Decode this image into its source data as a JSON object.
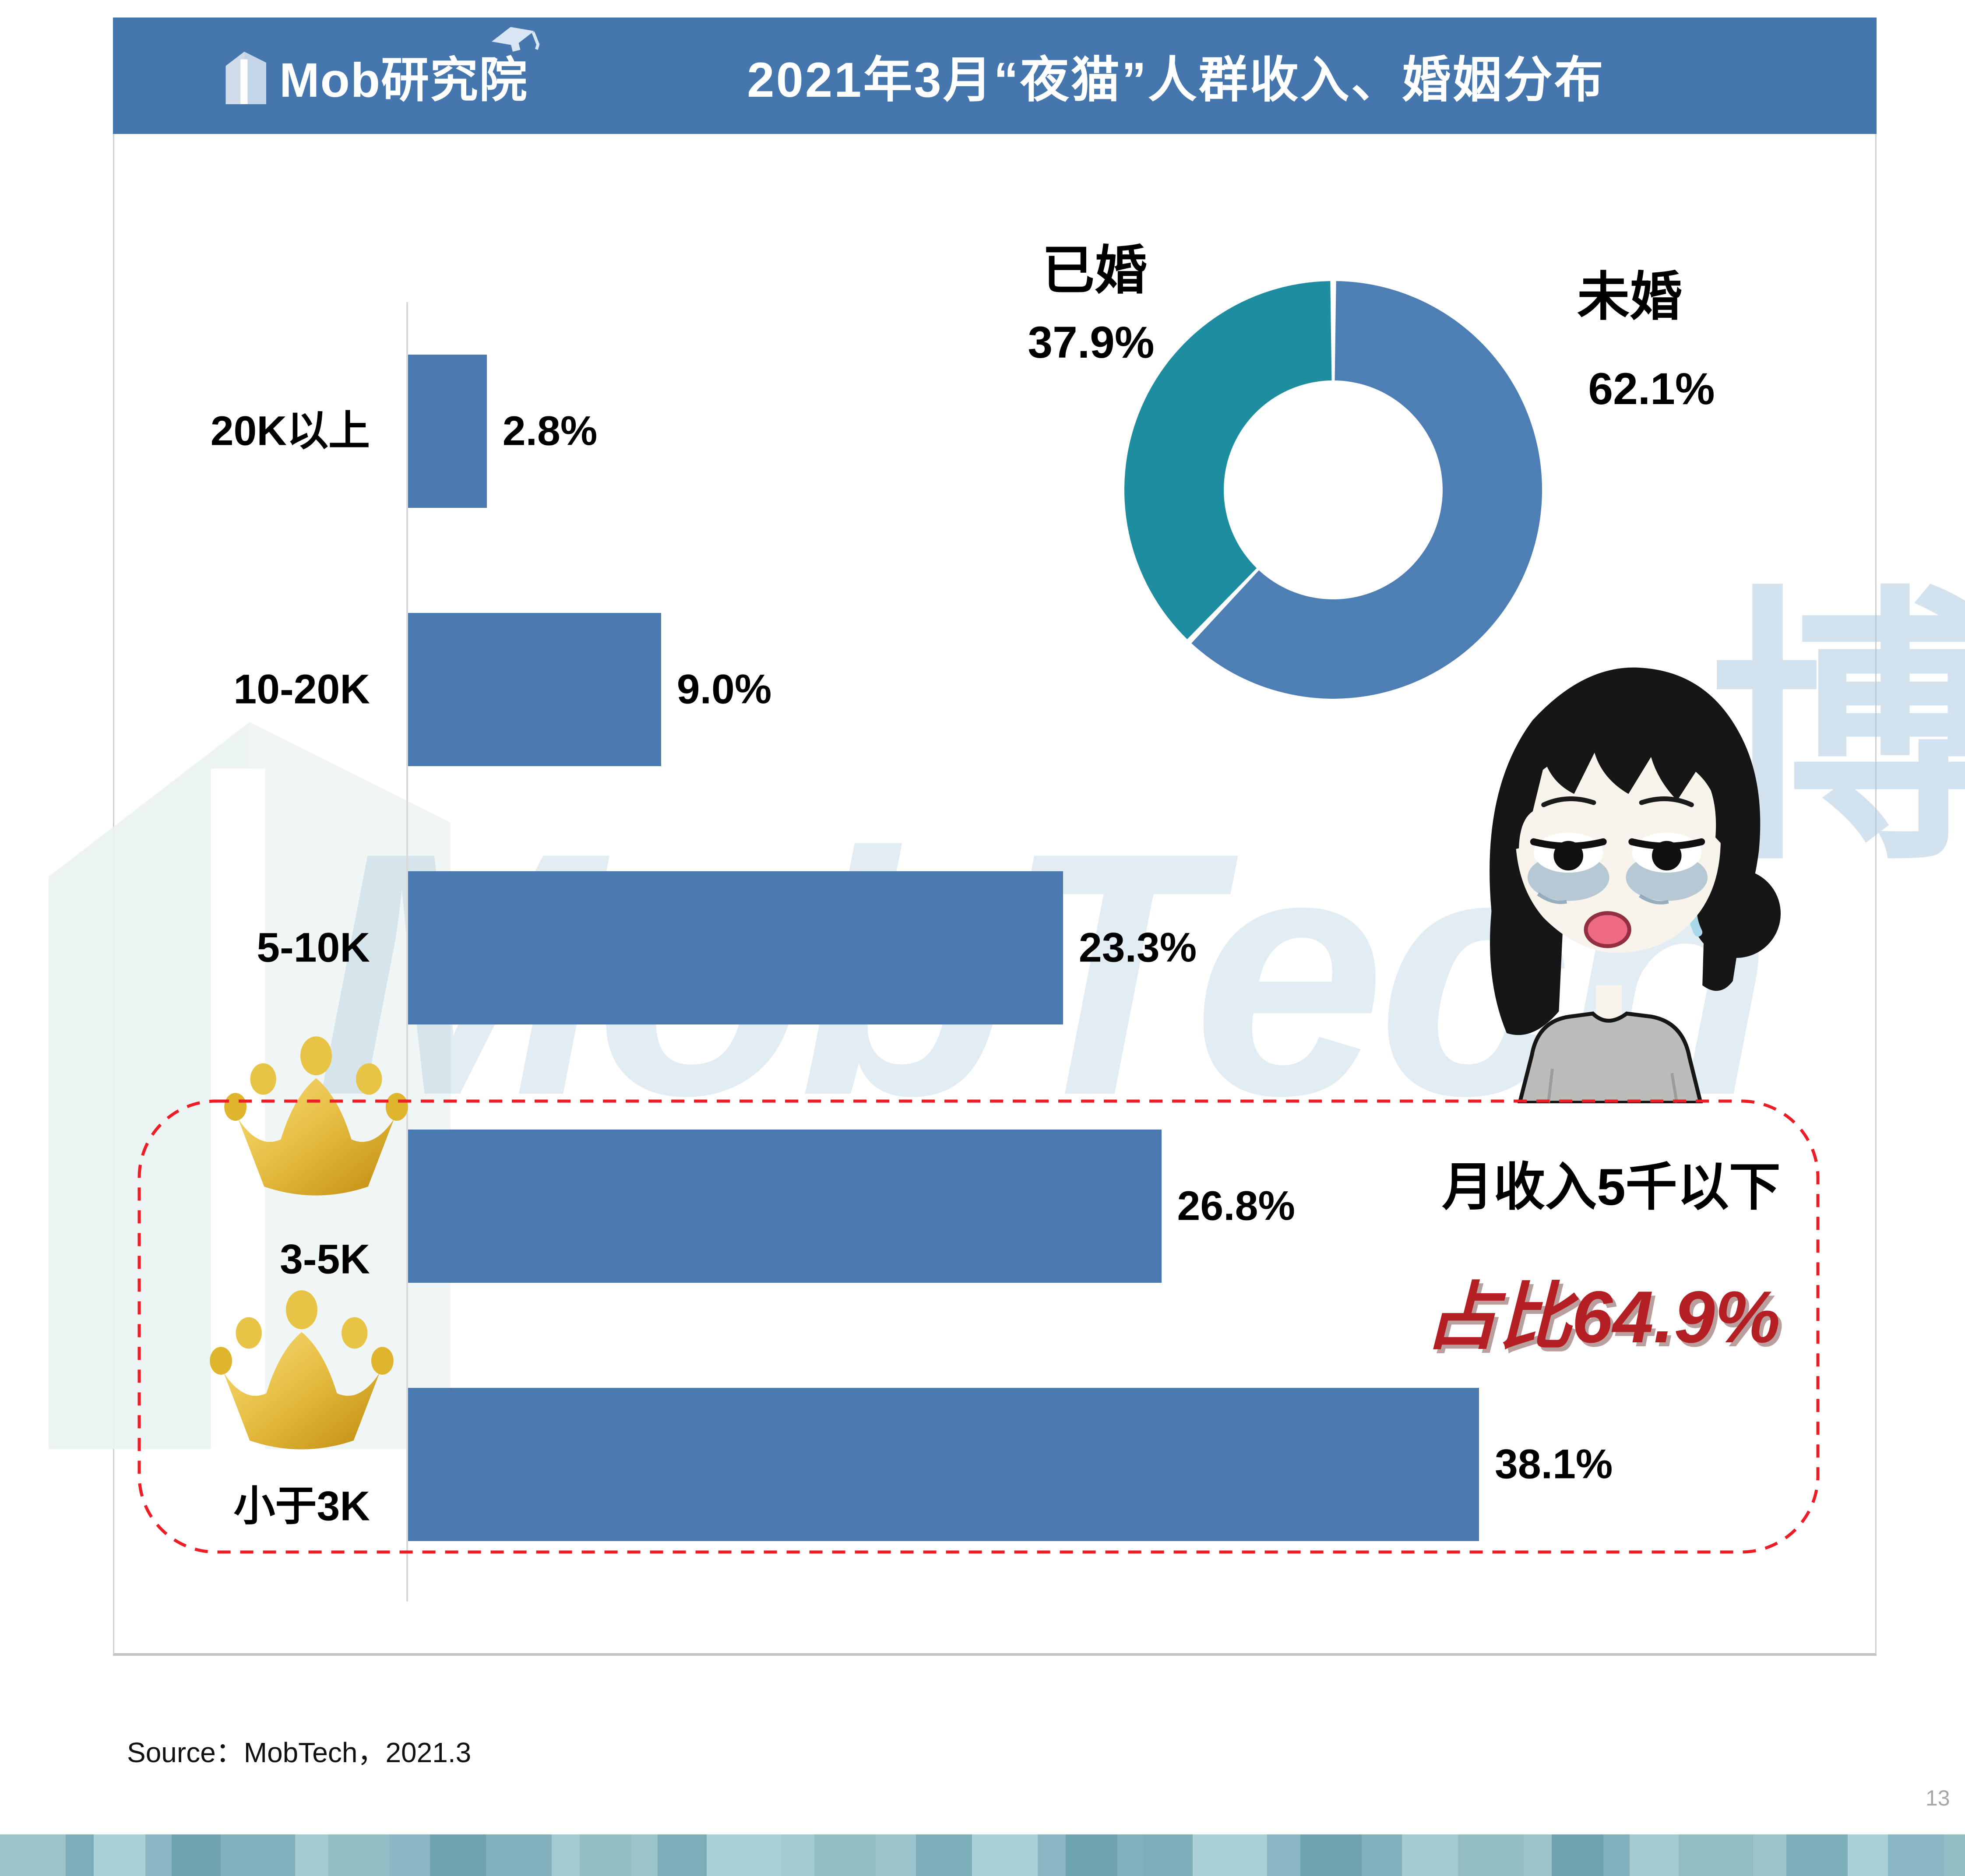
{
  "header": {
    "logo_text": "Mob研究院",
    "title": "2021年3月“夜猫”人群收入、婚姻分布",
    "bg_color": "#4576ad"
  },
  "chart_data": [
    {
      "type": "bar",
      "orientation": "horizontal",
      "title": "收入分布",
      "categories": [
        "20K以上",
        "10-20K",
        "5-10K",
        "3-5K",
        "小于3K"
      ],
      "values": [
        2.8,
        9.0,
        23.3,
        26.8,
        38.1
      ],
      "value_labels": [
        "2.8%",
        "9.0%",
        "23.3%",
        "26.8%",
        "38.1%"
      ],
      "crowned": [
        false,
        false,
        false,
        true,
        true
      ],
      "bar_color": "#4a79b2",
      "xlim": [
        0,
        40
      ],
      "grid": false
    },
    {
      "type": "pie",
      "donut": true,
      "title": "婚姻分布",
      "series": [
        {
          "name": "未婚",
          "value": 62.1,
          "label": "62.1%",
          "color": "#4d7fb5"
        },
        {
          "name": "已婚",
          "value": 37.9,
          "label": "37.9%",
          "color": "#1e8da0"
        }
      ],
      "legend_position": "sides"
    }
  ],
  "annotation": {
    "line1": "月收入5千以下",
    "line2": "占比64.9%",
    "accent_color": "#b41f24",
    "box_color": "#ee1c25"
  },
  "watermark": {
    "brand_text": "MobTech",
    "cjk_char": "博"
  },
  "source_note": "Source：MobTech，2021.3",
  "page_number": "13",
  "colors": {
    "header_bg": "#4576ad",
    "bar_blue": "#4a79b2",
    "donut_blue": "#4d7fb5",
    "donut_teal": "#1e8da0",
    "crown_gold": "#e0ad2a",
    "axis_gray": "#d9d9d9"
  },
  "bottom_strip_palette": [
    "#9ac3ca",
    "#89b6c0",
    "#a4cad0",
    "#7cadb9",
    "#6fa3b1",
    "#93bec6",
    "#aacfd4",
    "#82b1bd"
  ]
}
